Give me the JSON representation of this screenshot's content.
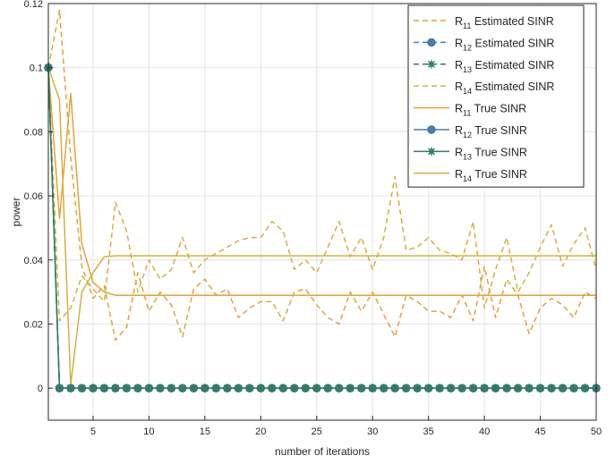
{
  "chart_data": {
    "type": "line",
    "xlabel": "number of iterations",
    "ylabel": "power",
    "xlim": [
      1,
      50
    ],
    "ylim": [
      -0.01,
      0.12
    ],
    "xticks": [
      5,
      10,
      15,
      20,
      25,
      30,
      35,
      40,
      45,
      50
    ],
    "yticks": [
      0,
      0.02,
      0.04,
      0.06,
      0.08,
      0.1,
      0.12
    ],
    "xtick_labels": [
      "5",
      "10",
      "15",
      "20",
      "25",
      "30",
      "35",
      "40",
      "45",
      "50"
    ],
    "ytick_labels": [
      "0",
      "0.02",
      "0.04",
      "0.06",
      "0.08",
      "0.1",
      "0.12"
    ],
    "grid": true,
    "legend_position": "top-right",
    "x": [
      1,
      2,
      3,
      4,
      5,
      6,
      7,
      8,
      9,
      10,
      11,
      12,
      13,
      14,
      15,
      16,
      17,
      18,
      19,
      20,
      21,
      22,
      23,
      24,
      25,
      26,
      27,
      28,
      29,
      30,
      31,
      32,
      33,
      34,
      35,
      36,
      37,
      38,
      39,
      40,
      41,
      42,
      43,
      44,
      45,
      46,
      47,
      48,
      49,
      50
    ],
    "series": [
      {
        "name_main": "R",
        "name_sub": "11",
        "name_suffix": " Estimated SINR",
        "color": "#e2a33a",
        "dash": true,
        "marker": "none",
        "values": [
          0.1,
          0.118,
          0.072,
          0.038,
          0.028,
          0.032,
          0.015,
          0.019,
          0.036,
          0.024,
          0.03,
          0.026,
          0.016,
          0.031,
          0.034,
          0.029,
          0.031,
          0.022,
          0.025,
          0.027,
          0.027,
          0.021,
          0.03,
          0.031,
          0.026,
          0.022,
          0.02,
          0.03,
          0.024,
          0.03,
          0.023,
          0.016,
          0.029,
          0.027,
          0.024,
          0.024,
          0.022,
          0.029,
          0.021,
          0.038,
          0.022,
          0.034,
          0.029,
          0.017,
          0.025,
          0.028,
          0.026,
          0.022,
          0.03,
          0.028
        ]
      },
      {
        "name_main": "R",
        "name_sub": "12",
        "name_suffix": " Estimated SINR",
        "color": "#4a7fa8",
        "dash": true,
        "marker": "circle",
        "values": [
          0.1,
          0,
          0,
          0,
          0,
          0,
          0,
          0,
          0,
          0,
          0,
          0,
          0,
          0,
          0,
          0,
          0,
          0,
          0,
          0,
          0,
          0,
          0,
          0,
          0,
          0,
          0,
          0,
          0,
          0,
          0,
          0,
          0,
          0,
          0,
          0,
          0,
          0,
          0,
          0,
          0,
          0,
          0,
          0,
          0,
          0,
          0,
          0,
          0,
          0
        ]
      },
      {
        "name_main": "R",
        "name_sub": "13",
        "name_suffix": " Estimated SINR",
        "color": "#2e7d5b",
        "dash": true,
        "marker": "star",
        "values": [
          0.1,
          0,
          0,
          0,
          0,
          0,
          0,
          0,
          0,
          0,
          0,
          0,
          0,
          0,
          0,
          0,
          0,
          0,
          0,
          0,
          0,
          0,
          0,
          0,
          0,
          0,
          0,
          0,
          0,
          0,
          0,
          0,
          0,
          0,
          0,
          0,
          0,
          0,
          0,
          0,
          0,
          0,
          0,
          0,
          0,
          0,
          0,
          0,
          0,
          0
        ]
      },
      {
        "name_main": "R",
        "name_sub": "14",
        "name_suffix": " Estimated SINR",
        "color": "#d4b03c",
        "dash": true,
        "marker": "none",
        "values": [
          0.1,
          0.021,
          0.025,
          0.035,
          0.031,
          0.027,
          0.058,
          0.049,
          0.03,
          0.04,
          0.034,
          0.037,
          0.047,
          0.036,
          0.04,
          0.042,
          0.044,
          0.046,
          0.047,
          0.047,
          0.052,
          0.049,
          0.037,
          0.04,
          0.036,
          0.044,
          0.052,
          0.041,
          0.047,
          0.037,
          0.047,
          0.066,
          0.043,
          0.044,
          0.047,
          0.043,
          0.042,
          0.04,
          0.052,
          0.025,
          0.037,
          0.047,
          0.03,
          0.036,
          0.044,
          0.051,
          0.038,
          0.045,
          0.05,
          0.037
        ]
      },
      {
        "name_main": "R",
        "name_sub": "11",
        "name_suffix": " True SINR",
        "color": "#e2a33a",
        "dash": false,
        "marker": "none",
        "values": [
          0.1,
          0.053,
          0.092,
          0.045,
          0.033,
          0.03,
          0.029,
          0.029,
          0.029,
          0.029,
          0.029,
          0.029,
          0.029,
          0.029,
          0.029,
          0.029,
          0.029,
          0.029,
          0.029,
          0.029,
          0.029,
          0.029,
          0.029,
          0.029,
          0.029,
          0.029,
          0.029,
          0.029,
          0.029,
          0.029,
          0.029,
          0.029,
          0.029,
          0.029,
          0.029,
          0.029,
          0.029,
          0.029,
          0.029,
          0.029,
          0.029,
          0.029,
          0.029,
          0.029,
          0.029,
          0.029,
          0.029,
          0.029,
          0.029,
          0.029
        ]
      },
      {
        "name_main": "R",
        "name_sub": "12",
        "name_suffix": " True SINR",
        "color": "#4a7fa8",
        "dash": false,
        "marker": "circle",
        "values": [
          0.1,
          0,
          0,
          0,
          0,
          0,
          0,
          0,
          0,
          0,
          0,
          0,
          0,
          0,
          0,
          0,
          0,
          0,
          0,
          0,
          0,
          0,
          0,
          0,
          0,
          0,
          0,
          0,
          0,
          0,
          0,
          0,
          0,
          0,
          0,
          0,
          0,
          0,
          0,
          0,
          0,
          0,
          0,
          0,
          0,
          0,
          0,
          0,
          0,
          0
        ]
      },
      {
        "name_main": "R",
        "name_sub": "13",
        "name_suffix": " True SINR",
        "color": "#2e7d5b",
        "dash": false,
        "marker": "star",
        "values": [
          0.1,
          0,
          0,
          0,
          0,
          0,
          0,
          0,
          0,
          0,
          0,
          0,
          0,
          0,
          0,
          0,
          0,
          0,
          0,
          0,
          0,
          0,
          0,
          0,
          0,
          0,
          0,
          0,
          0,
          0,
          0,
          0,
          0,
          0,
          0,
          0,
          0,
          0,
          0,
          0,
          0,
          0,
          0,
          0,
          0,
          0,
          0,
          0,
          0,
          0
        ]
      },
      {
        "name_main": "R",
        "name_sub": "14",
        "name_suffix": " True SINR",
        "color": "#d4b03c",
        "dash": false,
        "marker": "none",
        "values": [
          0.1,
          0.09,
          0.001,
          0.03,
          0.036,
          0.041,
          0.0413,
          0.0413,
          0.0413,
          0.0413,
          0.0413,
          0.0413,
          0.0413,
          0.0413,
          0.0413,
          0.0413,
          0.0413,
          0.0413,
          0.0413,
          0.0413,
          0.0413,
          0.0413,
          0.0413,
          0.0413,
          0.0413,
          0.0413,
          0.0413,
          0.0413,
          0.0413,
          0.0413,
          0.0413,
          0.0413,
          0.0413,
          0.0413,
          0.0413,
          0.0413,
          0.0413,
          0.0413,
          0.0413,
          0.0413,
          0.0413,
          0.0413,
          0.0413,
          0.0413,
          0.0413,
          0.0413,
          0.0413,
          0.0413,
          0.0413,
          0.0413
        ]
      }
    ]
  }
}
